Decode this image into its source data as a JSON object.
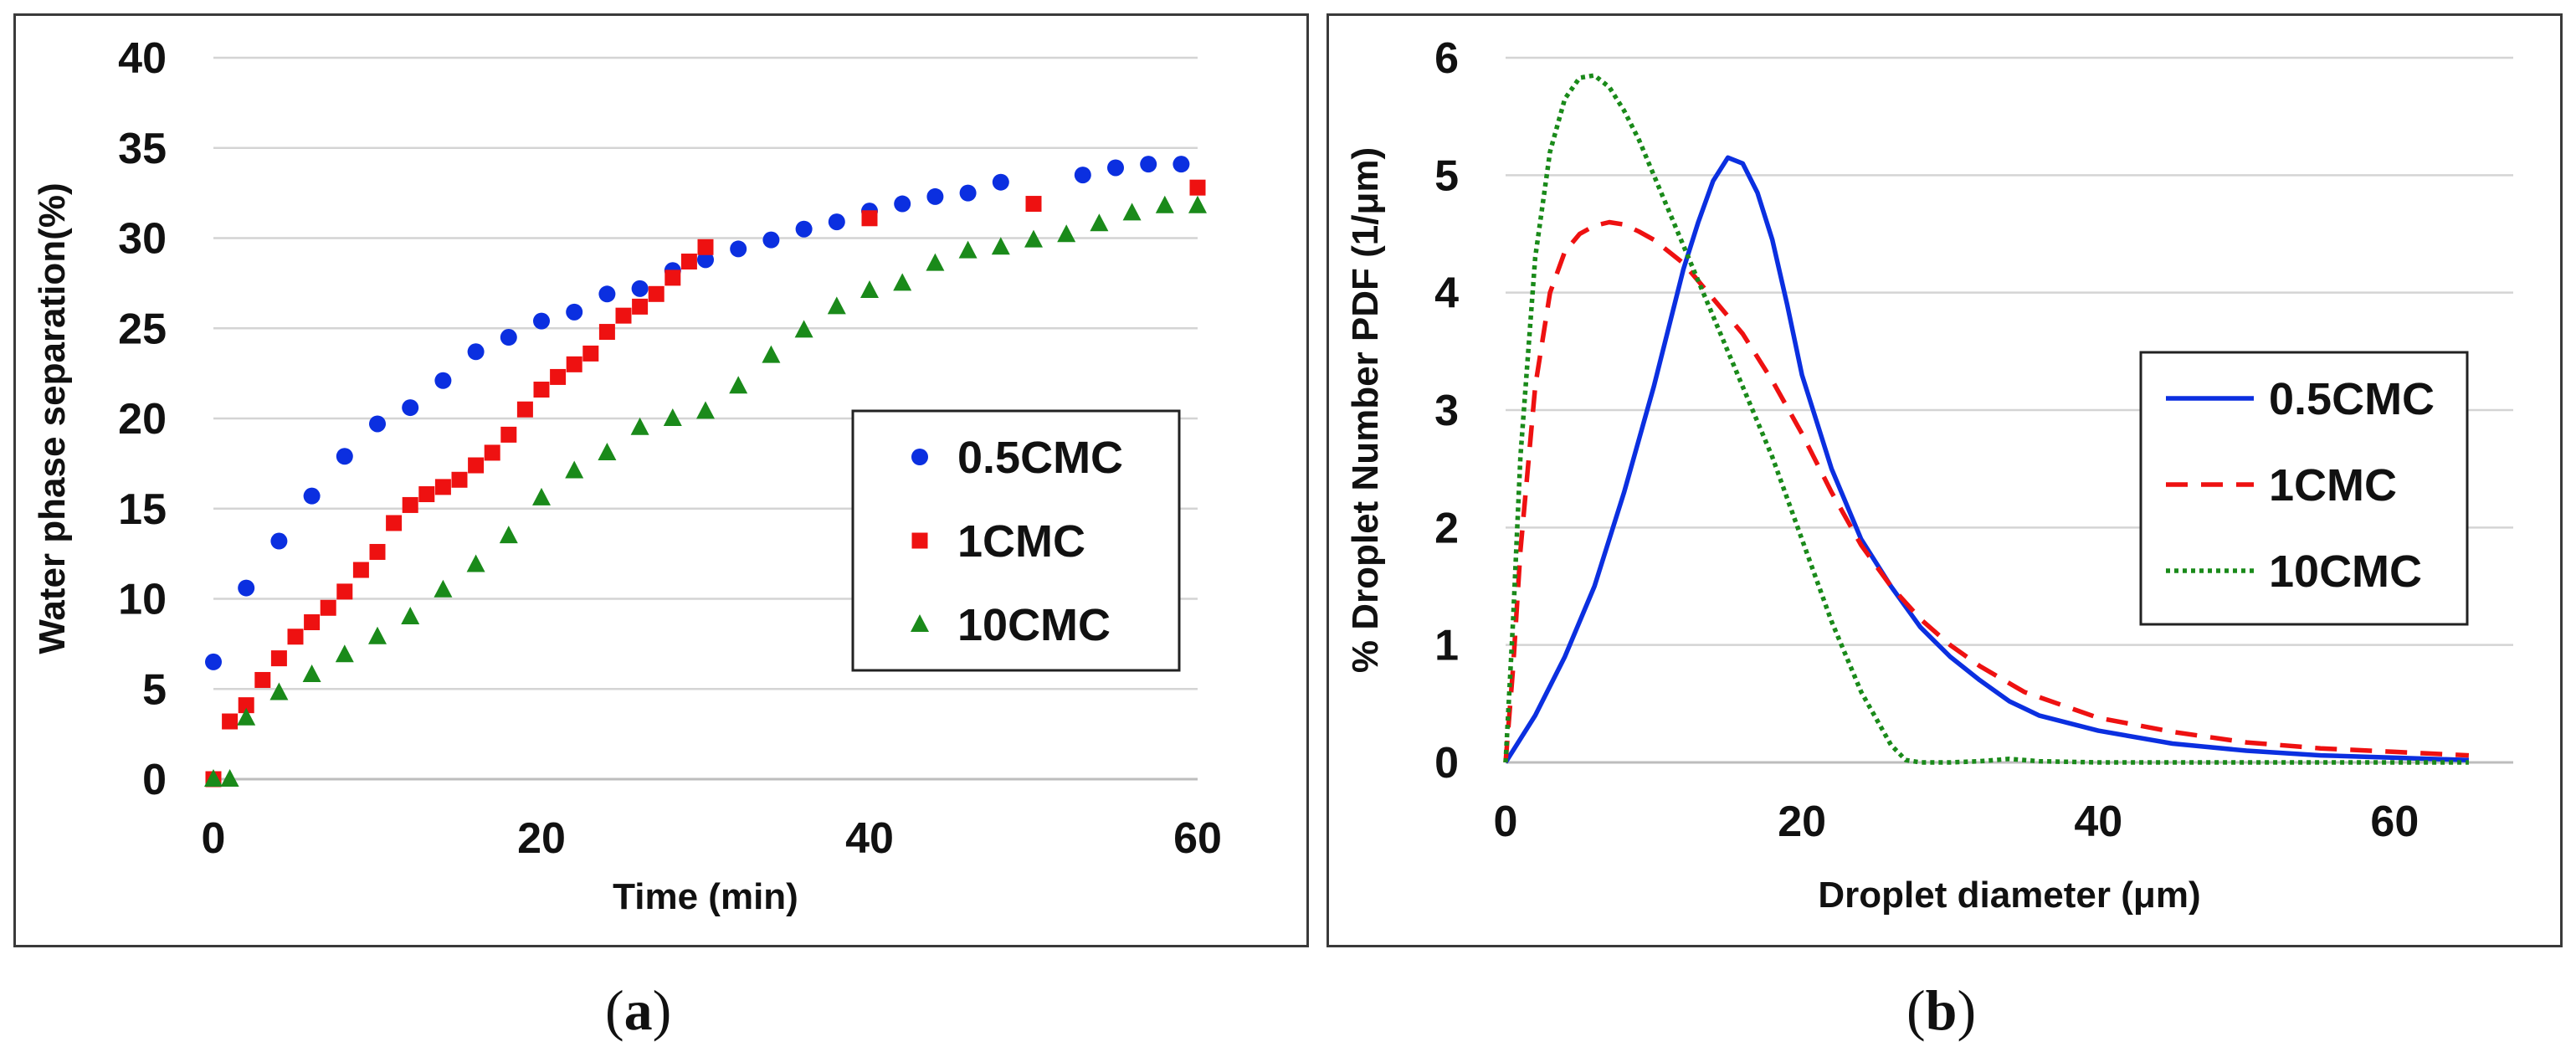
{
  "chart_data": [
    {
      "id": "a",
      "type": "scatter",
      "panel_label": "a",
      "title": "",
      "xlabel": "Time (min)",
      "ylabel": "Water phase separation(%)",
      "xlim": [
        0,
        60
      ],
      "ylim": [
        0,
        40
      ],
      "x_ticks": [
        0,
        20,
        40,
        60
      ],
      "y_ticks": [
        0,
        5,
        10,
        15,
        20,
        25,
        30,
        35,
        40
      ],
      "grid": "horizontal",
      "legend_position": "right",
      "series": [
        {
          "name": "0.5CMC",
          "color": "#0b2fe0",
          "marker": "circle",
          "x": [
            0,
            2,
            4,
            6,
            8,
            10,
            12,
            14,
            16,
            18,
            20,
            22,
            24,
            26,
            28,
            30,
            32,
            34,
            36,
            38,
            40,
            42,
            44,
            46,
            48,
            53,
            55,
            57,
            59
          ],
          "y": [
            6.5,
            10.6,
            13.2,
            15.7,
            17.9,
            19.7,
            20.6,
            22.1,
            23.7,
            24.5,
            25.4,
            25.9,
            26.9,
            27.2,
            28.2,
            28.8,
            29.4,
            29.9,
            30.5,
            30.9,
            31.5,
            31.9,
            32.3,
            32.5,
            33.1,
            33.5,
            33.9,
            34.1,
            34.1
          ]
        },
        {
          "name": "1CMC",
          "color": "#ee1111",
          "marker": "square",
          "x": [
            0,
            1,
            2,
            3,
            4,
            5,
            6,
            7,
            8,
            9,
            10,
            11,
            12,
            13,
            14,
            15,
            16,
            17,
            18,
            19,
            20,
            21,
            22,
            23,
            24,
            25,
            26,
            27,
            28,
            29,
            30,
            40,
            50,
            60
          ],
          "y": [
            0,
            3.2,
            4.1,
            5.5,
            6.7,
            7.9,
            8.7,
            9.5,
            10.4,
            11.6,
            12.6,
            14.2,
            15.2,
            15.8,
            16.2,
            16.6,
            17.4,
            18.1,
            19.1,
            20.5,
            21.6,
            22.3,
            23.0,
            23.6,
            24.8,
            25.7,
            26.2,
            26.9,
            27.8,
            28.7,
            29.5,
            31.1,
            31.9,
            32.8
          ]
        },
        {
          "name": "10CMC",
          "color": "#1a8a1a",
          "marker": "triangle",
          "x": [
            0,
            1,
            2,
            4,
            6,
            8,
            10,
            12,
            14,
            16,
            18,
            20,
            22,
            24,
            26,
            28,
            30,
            32,
            34,
            36,
            38,
            40,
            42,
            44,
            46,
            48,
            50,
            52,
            54,
            56,
            58,
            60
          ],
          "y": [
            0,
            0,
            3.4,
            4.8,
            5.8,
            6.9,
            7.9,
            9.0,
            10.5,
            11.9,
            13.5,
            15.6,
            17.1,
            18.1,
            19.5,
            20.0,
            20.4,
            21.8,
            23.5,
            24.9,
            26.2,
            27.1,
            27.5,
            28.6,
            29.3,
            29.5,
            29.9,
            30.2,
            30.8,
            31.4,
            31.8,
            31.8
          ]
        }
      ]
    },
    {
      "id": "b",
      "type": "line",
      "panel_label": "b",
      "title": "",
      "xlabel": "Droplet diameter (μm)",
      "ylabel": "% Droplet Number PDF (1/μm)",
      "xlim": [
        0,
        68
      ],
      "ylim": [
        0,
        6
      ],
      "x_ticks": [
        0,
        20,
        40,
        60
      ],
      "y_ticks": [
        0,
        1,
        2,
        3,
        4,
        5,
        6
      ],
      "grid": "horizontal",
      "legend_position": "right",
      "series": [
        {
          "name": "0.5CMC",
          "color": "#0b2fe0",
          "dash": "solid",
          "x": [
            0,
            2,
            4,
            6,
            8,
            10,
            12,
            13,
            14,
            15,
            16,
            17,
            18,
            19,
            20,
            22,
            24,
            26,
            28,
            30,
            32,
            34,
            36,
            40,
            45,
            50,
            55,
            60,
            65
          ],
          "y": [
            0,
            0.4,
            0.9,
            1.5,
            2.3,
            3.2,
            4.2,
            4.6,
            4.95,
            5.15,
            5.1,
            4.85,
            4.45,
            3.9,
            3.3,
            2.5,
            1.9,
            1.5,
            1.15,
            0.9,
            0.7,
            0.52,
            0.4,
            0.27,
            0.16,
            0.1,
            0.06,
            0.04,
            0.02
          ]
        },
        {
          "name": "1CMC",
          "color": "#ee1111",
          "dash": "dashed",
          "x": [
            0,
            0.5,
            1,
            2,
            3,
            4,
            5,
            6,
            7,
            8,
            9,
            10,
            12,
            14,
            16,
            18,
            20,
            22,
            24,
            26,
            28,
            30,
            32,
            35,
            40,
            45,
            50,
            55,
            60,
            65
          ],
          "y": [
            0,
            0.8,
            1.8,
            3.2,
            4.0,
            4.35,
            4.5,
            4.57,
            4.6,
            4.58,
            4.52,
            4.45,
            4.25,
            3.95,
            3.65,
            3.25,
            2.8,
            2.3,
            1.85,
            1.5,
            1.22,
            1.0,
            0.82,
            0.6,
            0.38,
            0.26,
            0.17,
            0.12,
            0.09,
            0.06
          ]
        },
        {
          "name": "10CMC",
          "color": "#1a8a1a",
          "dash": "dotted",
          "x": [
            0,
            0.5,
            1,
            2,
            3,
            4,
            5,
            6,
            7,
            8,
            9,
            10,
            12,
            14,
            16,
            18,
            20,
            22,
            24,
            26,
            27,
            28,
            30,
            32,
            34,
            36,
            40,
            50,
            60,
            65
          ],
          "y": [
            0,
            1.2,
            2.6,
            4.3,
            5.2,
            5.65,
            5.83,
            5.85,
            5.75,
            5.55,
            5.3,
            5.0,
            4.4,
            3.8,
            3.2,
            2.6,
            1.9,
            1.2,
            0.6,
            0.15,
            0.02,
            0,
            0,
            0.01,
            0.03,
            0.01,
            0,
            0,
            0,
            0
          ]
        }
      ]
    }
  ],
  "captions": {
    "a": "a",
    "b": "b"
  }
}
